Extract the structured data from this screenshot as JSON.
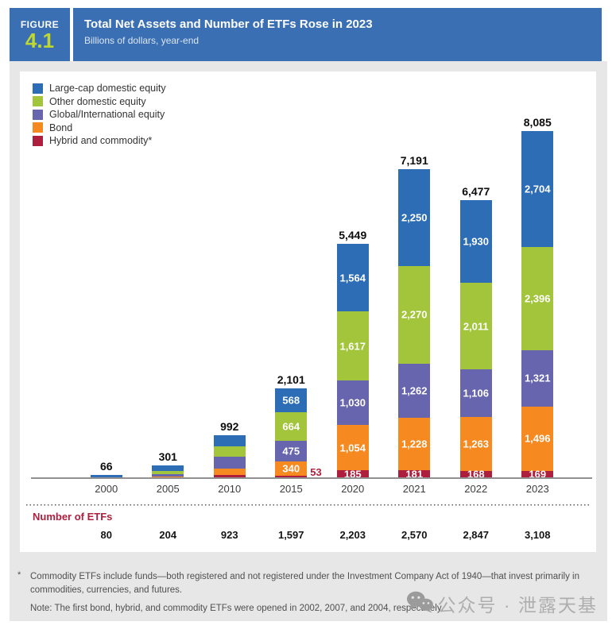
{
  "figure": {
    "label": "FIGURE",
    "number": "4.1",
    "title": "Total Net Assets and Number of ETFs Rose in 2023",
    "subtitle": "Billions of dollars, year-end"
  },
  "colors": {
    "header_blue": "#3a6fb4",
    "badge_number_green": "#bfd730",
    "large_cap": "#2d6db5",
    "other_domestic": "#a3c53b",
    "global_intl": "#6765ae",
    "bond": "#f6891f",
    "hybrid": "#ae1f3d",
    "etf_title_red": "#ae1f3d",
    "panel_bg": "#ffffff",
    "body_bg": "#e7e7e7"
  },
  "legend": [
    {
      "name": "large-cap-swatch",
      "label": "Large-cap domestic equity",
      "color": "#2d6db5"
    },
    {
      "name": "other-domestic-swatch",
      "label": "Other domestic equity",
      "color": "#a3c53b"
    },
    {
      "name": "global-intl-swatch",
      "label": "Global/International equity",
      "color": "#6765ae"
    },
    {
      "name": "bond-swatch",
      "label": "Bond",
      "color": "#f6891f"
    },
    {
      "name": "hybrid-swatch",
      "label": "Hybrid and commodity*",
      "color": "#ae1f3d"
    }
  ],
  "chart_data": {
    "type": "bar",
    "stacked": true,
    "title": "Total Net Assets and Number of ETFs Rose in 2023",
    "unit": "billions of dollars, year-end",
    "categories": [
      "2000",
      "2005",
      "2010",
      "2015",
      "2020",
      "2021",
      "2022",
      "2023"
    ],
    "ylim": [
      0,
      8085
    ],
    "series": [
      {
        "name": "Large-cap domestic equity",
        "color": "#2d6db5",
        "values": [
          52,
          130,
          245,
          568,
          1564,
          2250,
          1930,
          2704
        ],
        "labels": [
          "",
          "",
          "",
          "568",
          "1,564",
          "2,250",
          "1,930",
          "2,704"
        ]
      },
      {
        "name": "Other domestic equity",
        "color": "#a3c53b",
        "values": [
          10,
          74,
          245,
          664,
          1617,
          2270,
          2011,
          2396
        ],
        "labels": [
          "",
          "",
          "",
          "664",
          "1,617",
          "2,270",
          "2,011",
          "2,396"
        ]
      },
      {
        "name": "Global/International equity",
        "color": "#6765ae",
        "values": [
          4,
          56,
          280,
          475,
          1030,
          1262,
          1106,
          1321
        ],
        "labels": [
          "",
          "",
          "",
          "475",
          "1,030",
          "1,262",
          "1,106",
          "1,321"
        ]
      },
      {
        "name": "Bond",
        "color": "#f6891f",
        "values": [
          0,
          37,
          148,
          340,
          1054,
          1228,
          1263,
          1496
        ],
        "labels": [
          "",
          "",
          "",
          "340",
          "1,054",
          "1,228",
          "1,263",
          "1,496"
        ]
      },
      {
        "name": "Hybrid and commodity",
        "color": "#ae1f3d",
        "values": [
          0,
          4,
          74,
          53,
          185,
          181,
          168,
          169
        ],
        "labels": [
          "",
          "",
          "",
          "",
          "185",
          "181",
          "168",
          "169"
        ],
        "outside_labels": [
          "",
          "",
          "",
          "53",
          "",
          "",
          "",
          ""
        ]
      }
    ],
    "totals": [
      66,
      301,
      992,
      2101,
      5449,
      7191,
      6477,
      8085
    ],
    "total_labels": [
      "66",
      "301",
      "992",
      "2,101",
      "5,449",
      "7,191",
      "6,477",
      "8,085"
    ],
    "etf_counts": [
      "80",
      "204",
      "923",
      "1,597",
      "2,203",
      "2,570",
      "2,847",
      "3,108"
    ]
  },
  "number_of_etfs_label": "Number of ETFs",
  "footnote": {
    "star_symbol": "*",
    "star_text": "Commodity ETFs include funds—both registered and not registered under the Investment Company Act of 1940—that invest primarily in commodities, currencies, and futures.",
    "note_text": "Note: The first bond, hybrid, and commodity ETFs were opened in 2002, 2007, and 2004, respectively."
  },
  "watermark": {
    "icon": "wechat-icon",
    "text": "公众号 · 泄露天基"
  }
}
